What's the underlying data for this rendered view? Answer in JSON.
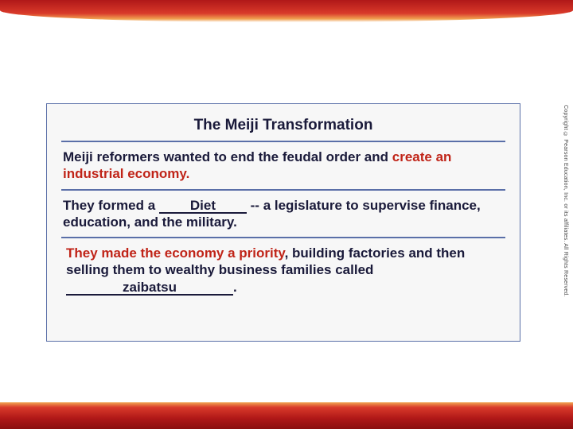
{
  "slide": {
    "title": "The Meiji Transformation",
    "section1": {
      "lead": "Meiji reformers wanted to end the feudal order and ",
      "accent": "create an industrial economy."
    },
    "section2": {
      "before_blank": "They formed a ",
      "answer": "Diet",
      "after_blank": "  -- a legislature to supervise finance, education, and the military."
    },
    "section3": {
      "lead1": "They made the economy a priority",
      "lead2": ", building factories and then selling them to wealthy business families called ",
      "answer": "zaibatsu",
      "trail": "."
    }
  },
  "copyright": "Copyright © Pearson Education, Inc. or its affiliates. All Rights Reserved.",
  "colors": {
    "border": "#5a6fa8",
    "box_bg": "#f7f7f7",
    "text": "#1a1a3a",
    "accent": "#c02418",
    "band_dark": "#8a0f0f",
    "band_mid": "#b01818",
    "band_light": "#d93a2a",
    "band_glow": "#f0a050"
  }
}
